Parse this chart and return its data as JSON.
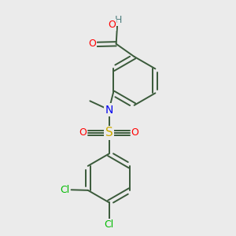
{
  "background_color": "#ebebeb",
  "bond_color": "#3a5a3a",
  "colors": {
    "O": "#ff0000",
    "N": "#0000ee",
    "S": "#ccaa00",
    "Cl": "#00bb00",
    "H": "#508080"
  },
  "figsize": [
    3.0,
    3.0
  ],
  "dpi": 100,
  "bond_lw": 1.4
}
